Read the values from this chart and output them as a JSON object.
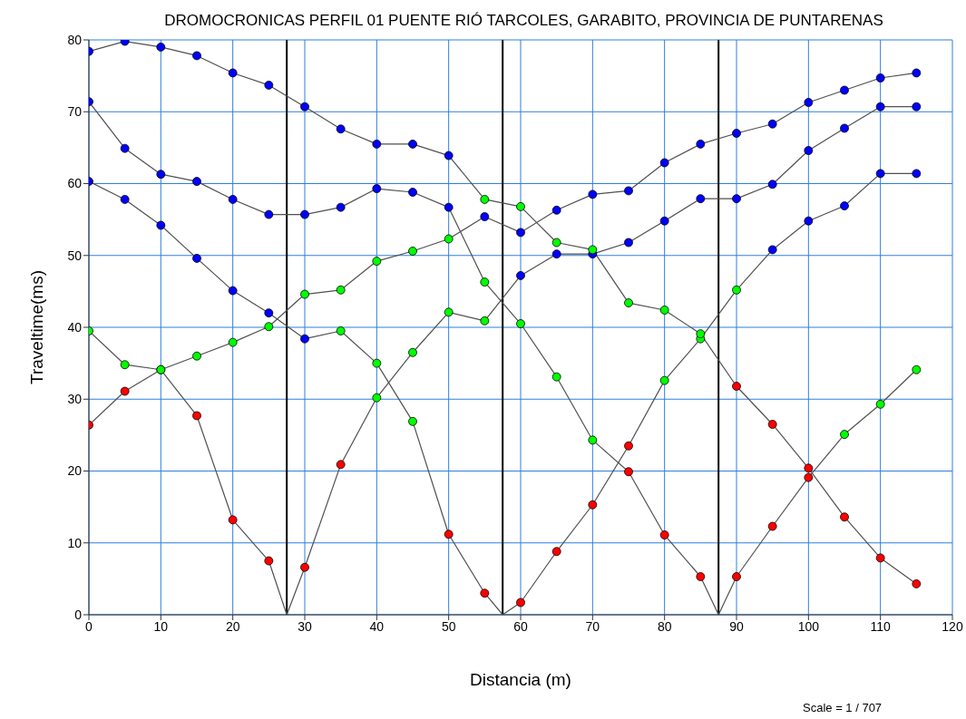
{
  "chart_data": {
    "type": "line",
    "title": "DROMOCRONICAS PERFIL 01 PUENTE RIÓ TARCOLES, GARABITO, PROVINCIA DE PUNTARENAS",
    "xlabel": "Distancia (m)",
    "ylabel": "Traveltime(ms)",
    "annotations": [
      "Scale = 1 / 707"
    ],
    "xlim": [
      0,
      120
    ],
    "xticks": [
      0,
      10,
      20,
      30,
      40,
      50,
      60,
      70,
      80,
      90,
      100,
      110,
      120
    ],
    "ylim": [
      0,
      80
    ],
    "yticks": [
      0,
      10,
      20,
      30,
      40,
      50,
      60,
      70,
      80
    ],
    "grid": true,
    "marker": "circle",
    "line_style": "solid",
    "series": [
      {
        "color": "#505050",
        "x": [
          0,
          5,
          10,
          15,
          20,
          25,
          30,
          35,
          40,
          45,
          50,
          55,
          60,
          65,
          70,
          75,
          80,
          85,
          90,
          95,
          100,
          105,
          110,
          115
        ],
        "values": [
          26.4,
          31.1,
          34.1,
          36.0,
          37.9,
          40.1,
          44.6,
          45.2,
          49.2,
          50.6,
          52.3,
          55.4,
          53.2,
          56.3,
          58.5,
          59.0,
          62.9,
          65.5,
          67.0,
          68.3,
          71.3,
          73.0,
          74.7,
          75.4
        ],
        "colors": [
          "#ff0000",
          "#ff0000",
          "#00ff00",
          "#00ff00",
          "#00ff00",
          "#00ff00",
          "#00ff00",
          "#00ff00",
          "#00ff00",
          "#00ff00",
          "#00ff00",
          "#0000ff",
          "#0000ff",
          "#0000ff",
          "#0000ff",
          "#0000ff",
          "#0000ff",
          "#0000ff",
          "#0000ff",
          "#0000ff",
          "#0000ff",
          "#0000ff",
          "#0000ff",
          "#0000ff"
        ]
      },
      {
        "color": "#505050",
        "x": [
          0,
          5,
          10,
          15,
          20,
          25,
          27.5,
          30,
          35,
          40,
          45,
          50,
          55,
          60,
          65,
          70,
          75,
          80,
          85,
          90,
          95,
          100,
          105,
          110,
          115
        ],
        "values": [
          39.5,
          34.8,
          34.1,
          27.7,
          13.2,
          7.5,
          0,
          6.6,
          20.9,
          30.2,
          36.5,
          42.1,
          40.9,
          47.2,
          50.2,
          50.2,
          51.8,
          54.8,
          57.9,
          57.9,
          59.9,
          64.6,
          67.7,
          70.7,
          70.7
        ],
        "colors": [
          "#00ff00",
          "#00ff00",
          "#00ff00",
          "#ff0000",
          "#ff0000",
          "#ff0000",
          null,
          "#ff0000",
          "#ff0000",
          "#00ff00",
          "#00ff00",
          "#00ff00",
          "#00ff00",
          "#0000ff",
          "#0000ff",
          "#0000ff",
          "#0000ff",
          "#0000ff",
          "#0000ff",
          "#0000ff",
          "#0000ff",
          "#0000ff",
          "#0000ff",
          "#0000ff",
          "#0000ff"
        ]
      },
      {
        "color": "#505050",
        "x": [
          0,
          5,
          10,
          15,
          20,
          25,
          30,
          35,
          40,
          45,
          50,
          55,
          57.5,
          60,
          65,
          70,
          75,
          80,
          85,
          90,
          95,
          100,
          105,
          110,
          115
        ],
        "values": [
          60.3,
          57.8,
          54.2,
          49.6,
          45.1,
          42.0,
          38.4,
          39.5,
          35.0,
          26.9,
          11.2,
          3.0,
          0,
          1.7,
          8.8,
          15.3,
          23.5,
          32.6,
          38.4,
          45.2,
          50.8,
          54.8,
          56.9,
          61.4,
          61.4
        ],
        "colors": [
          "#0000ff",
          "#0000ff",
          "#0000ff",
          "#0000ff",
          "#0000ff",
          "#0000ff",
          "#0000ff",
          "#00ff00",
          "#00ff00",
          "#00ff00",
          "#ff0000",
          "#ff0000",
          null,
          "#ff0000",
          "#ff0000",
          "#ff0000",
          "#ff0000",
          "#00ff00",
          "#00ff00",
          "#00ff00",
          "#0000ff",
          "#0000ff",
          "#0000ff",
          "#0000ff",
          "#0000ff"
        ]
      },
      {
        "color": "#505050",
        "x": [
          0,
          5,
          10,
          15,
          20,
          25,
          30,
          35,
          40,
          45,
          50,
          55,
          60,
          65,
          70,
          75,
          80,
          85,
          87.5,
          90,
          95,
          100,
          105,
          110,
          115
        ],
        "values": [
          71.4,
          64.9,
          61.3,
          60.3,
          57.8,
          55.7,
          55.7,
          56.7,
          59.3,
          58.8,
          56.7,
          46.3,
          40.5,
          33.1,
          24.3,
          19.9,
          11.1,
          5.3,
          0,
          5.3,
          12.3,
          19.1,
          25.1,
          29.3,
          34.1
        ],
        "colors": [
          "#0000ff",
          "#0000ff",
          "#0000ff",
          "#0000ff",
          "#0000ff",
          "#0000ff",
          "#0000ff",
          "#0000ff",
          "#0000ff",
          "#0000ff",
          "#0000ff",
          "#00ff00",
          "#00ff00",
          "#00ff00",
          "#00ff00",
          "#ff0000",
          "#ff0000",
          "#ff0000",
          null,
          "#ff0000",
          "#ff0000",
          "#ff0000",
          "#00ff00",
          "#00ff00",
          "#00ff00"
        ]
      },
      {
        "color": "#505050",
        "x": [
          0,
          5,
          10,
          15,
          20,
          25,
          30,
          35,
          40,
          45,
          50,
          55,
          60,
          65,
          70,
          75,
          80,
          85,
          90,
          95,
          100,
          105,
          110,
          115
        ],
        "values": [
          78.4,
          79.8,
          79.0,
          77.8,
          75.4,
          73.7,
          70.7,
          67.6,
          65.5,
          65.5,
          63.9,
          57.8,
          56.8,
          51.8,
          50.8,
          43.4,
          42.4,
          39.1,
          31.8,
          26.5,
          20.4,
          13.6,
          7.9,
          4.3
        ],
        "colors": [
          "#0000ff",
          "#0000ff",
          "#0000ff",
          "#0000ff",
          "#0000ff",
          "#0000ff",
          "#0000ff",
          "#0000ff",
          "#0000ff",
          "#0000ff",
          "#0000ff",
          "#00ff00",
          "#00ff00",
          "#00ff00",
          "#00ff00",
          "#00ff00",
          "#00ff00",
          "#00ff00",
          "#ff0000",
          "#ff0000",
          "#ff0000",
          "#ff0000",
          "#ff0000",
          "#ff0000"
        ]
      }
    ],
    "ref_lines": [
      {
        "axis": "x",
        "value": 27.5,
        "color": "#000000"
      },
      {
        "axis": "x",
        "value": 57.5,
        "color": "#000000"
      },
      {
        "axis": "x",
        "value": 87.5,
        "color": "#000000"
      }
    ]
  }
}
